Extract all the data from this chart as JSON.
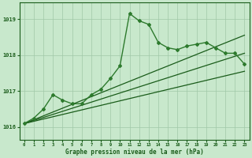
{
  "title": "Graphe pression niveau de la mer (hPa)",
  "background_color": "#c8e8cc",
  "grid_color": "#a0c8a8",
  "line_color_dark": "#1a5c1a",
  "line_color_medium": "#2d7a2d",
  "xlabel_color": "#1a5c1a",
  "xlim": [
    -0.5,
    23.5
  ],
  "ylim": [
    1015.65,
    1019.45
  ],
  "yticks": [
    1016,
    1017,
    1018,
    1019
  ],
  "xticks": [
    0,
    1,
    2,
    3,
    4,
    5,
    6,
    7,
    8,
    9,
    10,
    11,
    12,
    13,
    14,
    15,
    16,
    17,
    18,
    19,
    20,
    21,
    22,
    23
  ],
  "series": [
    {
      "x": [
        0,
        1,
        2,
        3,
        4,
        5,
        6,
        7,
        8,
        9,
        10,
        11,
        12,
        13,
        14,
        15,
        16,
        17,
        18,
        19,
        20,
        21,
        22,
        23
      ],
      "y": [
        1016.1,
        1016.25,
        1016.5,
        1016.9,
        1016.75,
        1016.65,
        1016.65,
        1016.9,
        1017.05,
        1017.35,
        1017.7,
        1019.15,
        1018.95,
        1018.85,
        1018.35,
        1018.2,
        1018.15,
        1018.25,
        1018.3,
        1018.35,
        1018.2,
        1018.05,
        1018.05,
        1017.75
      ],
      "style": "line_marker",
      "color": "#2d7a2d",
      "linewidth": 1.0,
      "marker": "D",
      "markersize": 2.0
    },
    {
      "x": [
        0,
        23
      ],
      "y": [
        1016.1,
        1017.55
      ],
      "style": "solid",
      "color": "#1a5c1a",
      "linewidth": 0.9
    },
    {
      "x": [
        0,
        23
      ],
      "y": [
        1016.1,
        1018.05
      ],
      "style": "solid",
      "color": "#1a5c1a",
      "linewidth": 0.9
    },
    {
      "x": [
        0,
        23
      ],
      "y": [
        1016.1,
        1018.55
      ],
      "style": "solid",
      "color": "#1a5c1a",
      "linewidth": 0.9
    }
  ]
}
